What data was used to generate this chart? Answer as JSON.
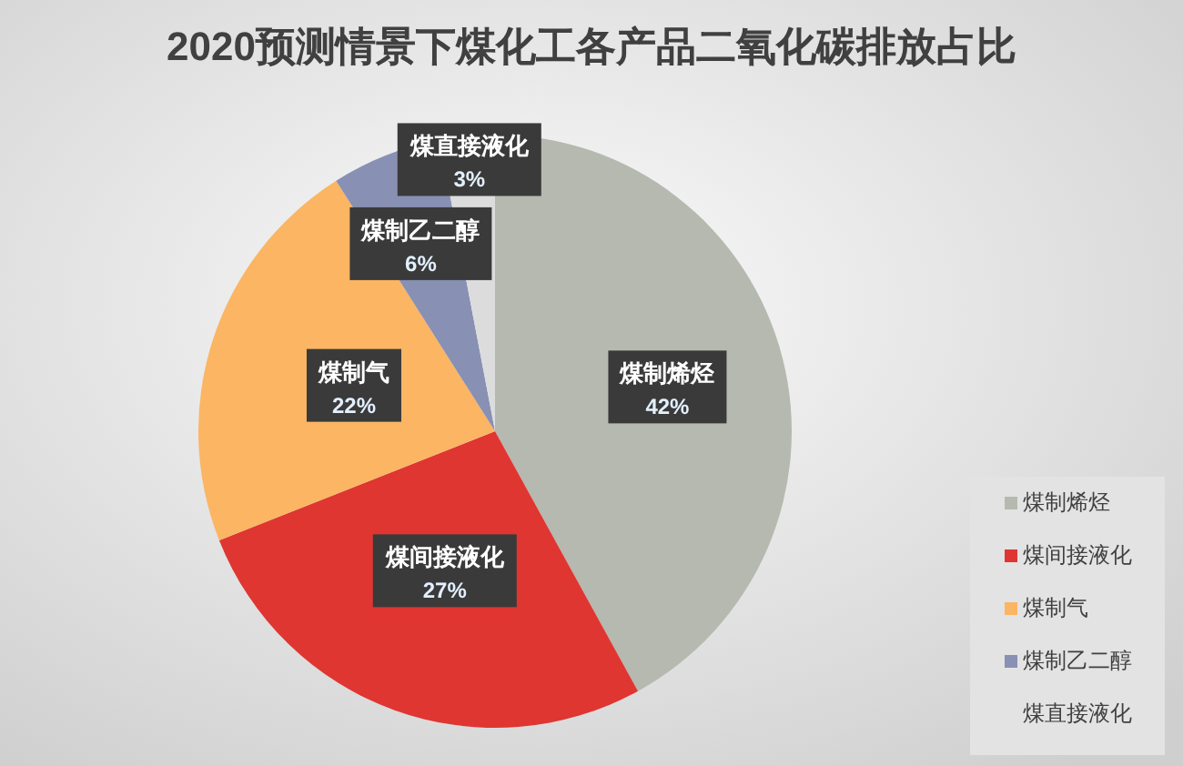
{
  "chart_data": {
    "type": "pie",
    "title": "2020预测情景下煤化工各产品二氧化碳排放占比",
    "categories": [
      "煤制烯烃",
      "煤间接液化",
      "煤制气",
      "煤制乙二醇",
      "煤直接液化"
    ],
    "values": [
      42,
      27,
      22,
      6,
      3
    ],
    "colors": [
      "#b5b9b0",
      "#df3632",
      "#fbb563",
      "#8890b4",
      "#dcdcdc"
    ],
    "value_labels": [
      "42%",
      "27%",
      "22%",
      "6%",
      "3%"
    ],
    "legend": "bottom right"
  }
}
